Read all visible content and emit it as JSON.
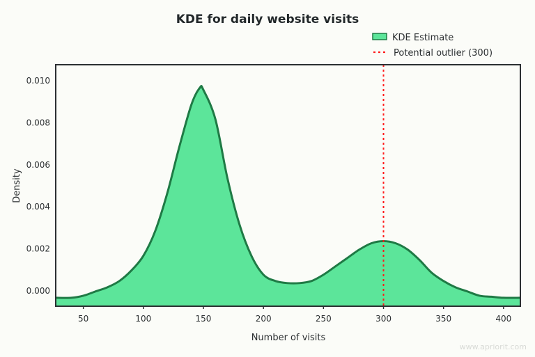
{
  "chart_data": {
    "type": "area",
    "title": "KDE for daily website visits",
    "xlabel": "Number of visits",
    "ylabel": "Density",
    "xlim": [
      27,
      414
    ],
    "ylim": [
      -0.0004,
      0.0111
    ],
    "xticks": [
      50,
      100,
      150,
      200,
      250,
      300,
      350,
      400
    ],
    "yticks": [
      "0.000",
      "0.002",
      "0.004",
      "0.006",
      "0.008",
      "0.010"
    ],
    "grid": false,
    "legend_position": "top-right, above plot",
    "series": [
      {
        "name": "KDE Estimate",
        "color": "#5ce59a",
        "edge_color": "#1f7a45",
        "x": [
          27,
          40,
          50,
          60,
          70,
          80,
          90,
          100,
          110,
          120,
          130,
          140,
          147,
          150,
          160,
          170,
          180,
          190,
          200,
          210,
          220,
          230,
          240,
          250,
          260,
          270,
          280,
          290,
          300,
          310,
          320,
          330,
          340,
          350,
          360,
          370,
          380,
          390,
          400,
          414
        ],
        "y": [
          0.0,
          0.0,
          0.0001,
          0.0003,
          0.0005,
          0.0008,
          0.0013,
          0.002,
          0.0032,
          0.005,
          0.0072,
          0.0092,
          0.01,
          0.0099,
          0.0085,
          0.0057,
          0.0035,
          0.002,
          0.0011,
          0.0008,
          0.0007,
          0.0007,
          0.0008,
          0.0011,
          0.0015,
          0.0019,
          0.0023,
          0.0026,
          0.0027,
          0.0026,
          0.0023,
          0.0018,
          0.0012,
          0.0008,
          0.0005,
          0.0003,
          0.0001,
          5e-05,
          0.0,
          0.0
        ]
      }
    ],
    "annotations": [
      {
        "type": "vline",
        "x": 300,
        "label": "Potential outlier (300)",
        "color": "#ff1a1a",
        "style": "dotted"
      }
    ]
  },
  "watermark": "www.apriorit.com"
}
